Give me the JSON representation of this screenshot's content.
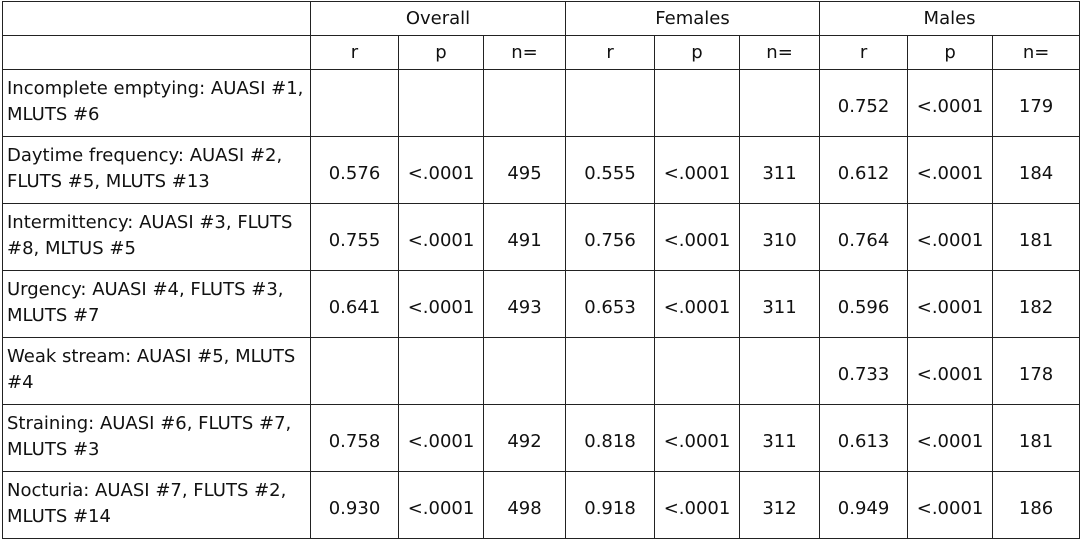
{
  "groups": [
    "Overall",
    "Females",
    "Males"
  ],
  "subheaders": [
    "r",
    "p",
    "n="
  ],
  "rows": [
    {
      "label": "Incomplete emptying: AUASI #1, MLUTS #6",
      "overall": [
        "",
        "",
        ""
      ],
      "females": [
        "",
        "",
        ""
      ],
      "males": [
        "0.752",
        "<.0001",
        "179"
      ]
    },
    {
      "label": "Daytime frequency: AUASI #2, FLUTS #5, MLUTS #13",
      "overall": [
        "0.576",
        "<.0001",
        "495"
      ],
      "females": [
        "0.555",
        "<.0001",
        "311"
      ],
      "males": [
        "0.612",
        "<.0001",
        "184"
      ]
    },
    {
      "label": "Intermittency: AUASI #3, FLUTS #8, MLTUS #5",
      "overall": [
        "0.755",
        "<.0001",
        "491"
      ],
      "females": [
        "0.756",
        "<.0001",
        "310"
      ],
      "males": [
        "0.764",
        "<.0001",
        "181"
      ]
    },
    {
      "label": "Urgency: AUASI #4, FLUTS #3, MLUTS #7",
      "overall": [
        "0.641",
        "<.0001",
        "493"
      ],
      "females": [
        "0.653",
        "<.0001",
        "311"
      ],
      "males": [
        "0.596",
        "<.0001",
        "182"
      ]
    },
    {
      "label": "Weak stream: AUASI #5, MLUTS #4",
      "overall": [
        "",
        "",
        ""
      ],
      "females": [
        "",
        "",
        ""
      ],
      "males": [
        "0.733",
        "<.0001",
        "178"
      ]
    },
    {
      "label": "Straining: AUASI #6, FLUTS #7, MLUTS #3",
      "overall": [
        "0.758",
        "<.0001",
        "492"
      ],
      "females": [
        "0.818",
        "<.0001",
        "311"
      ],
      "males": [
        "0.613",
        "<.0001",
        "181"
      ]
    },
    {
      "label": "Nocturia: AUASI #7, FLUTS #2, MLUTS #14",
      "overall": [
        "0.930",
        "<.0001",
        "498"
      ],
      "females": [
        "0.918",
        "<.0001",
        "312"
      ],
      "males": [
        "0.949",
        "<.0001",
        "186"
      ]
    }
  ]
}
